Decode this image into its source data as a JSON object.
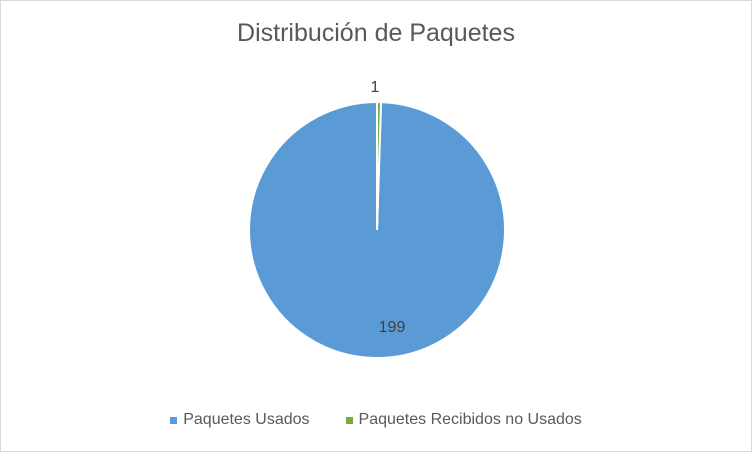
{
  "chart_data": {
    "type": "pie",
    "title": "Distribución de Paquetes",
    "categories": [
      "Paquetes Usados",
      "Paquetes Recibidos no Usados"
    ],
    "values": [
      199,
      1
    ],
    "colors": [
      "#5b9bd5",
      "#70ad47"
    ],
    "data_labels": [
      "199",
      "1"
    ],
    "legend_position": "bottom",
    "start_angle_deg": 0,
    "direction": "counterclockwise"
  }
}
